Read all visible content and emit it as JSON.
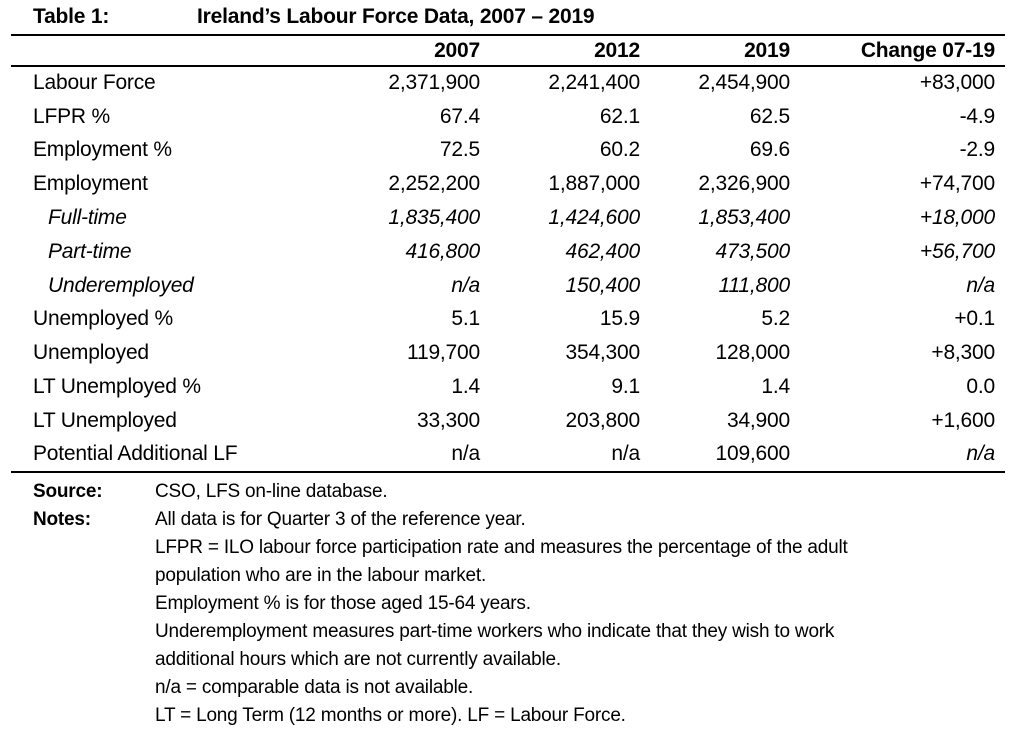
{
  "title": {
    "label": "Table 1:",
    "text": "Ireland’s Labour Force Data, 2007 – 2019"
  },
  "table": {
    "columns": [
      "2007",
      "2012",
      "2019",
      "Change 07-19"
    ],
    "rows": [
      {
        "label": "Labour Force",
        "values": [
          "2,371,900",
          "2,241,400",
          "2,454,900",
          "+83,000"
        ]
      },
      {
        "label": "LFPR %",
        "values": [
          "67.4",
          "62.1",
          "62.5",
          "-4.9"
        ]
      },
      {
        "label": "Employment %",
        "values": [
          "72.5",
          "60.2",
          "69.6",
          "-2.9"
        ]
      },
      {
        "label": "Employment",
        "values": [
          "2,252,200",
          "1,887,000",
          "2,326,900",
          "+74,700"
        ]
      },
      {
        "label": "Full-time",
        "indent": true,
        "italic": true,
        "values": [
          "1,835,400",
          "1,424,600",
          "1,853,400",
          "+18,000"
        ]
      },
      {
        "label": "Part-time",
        "indent": true,
        "italic": true,
        "values": [
          "416,800",
          "462,400",
          "473,500",
          "+56,700"
        ]
      },
      {
        "label": "Underemployed",
        "indent": true,
        "italic": true,
        "values": [
          "n/a",
          "150,400",
          "111,800",
          "n/a"
        ]
      },
      {
        "label": "Unemployed %",
        "values": [
          "5.1",
          "15.9",
          "5.2",
          "+0.1"
        ]
      },
      {
        "label": "Unemployed",
        "values": [
          "119,700",
          "354,300",
          "128,000",
          "+8,300"
        ]
      },
      {
        "label": "LT Unemployed %",
        "values": [
          "1.4",
          "9.1",
          "1.4",
          "0.0"
        ]
      },
      {
        "label": "LT Unemployed",
        "values": [
          "33,300",
          "203,800",
          "34,900",
          "+1,600"
        ]
      },
      {
        "label": "Potential Additional LF",
        "values": [
          "n/a",
          "n/a",
          "109,600",
          "n/a"
        ],
        "italic_cells": [
          3
        ]
      }
    ]
  },
  "footer": {
    "source_label": "Source:",
    "source_lines": [
      "CSO, LFS on-line database."
    ],
    "notes_label": "Notes:",
    "notes_lines": [
      "All data is for Quarter 3 of the reference year.",
      "LFPR = ILO labour force participation rate and measures the percentage of the adult",
      "population who are in the labour market.",
      "Employment % is for those aged 15-64 years.",
      "Underemployment measures part-time workers who indicate that they wish to work",
      "additional hours which are not currently available.",
      "n/a = comparable data is not available.",
      "LT = Long Term (12 months or more). LF = Labour Force."
    ]
  }
}
